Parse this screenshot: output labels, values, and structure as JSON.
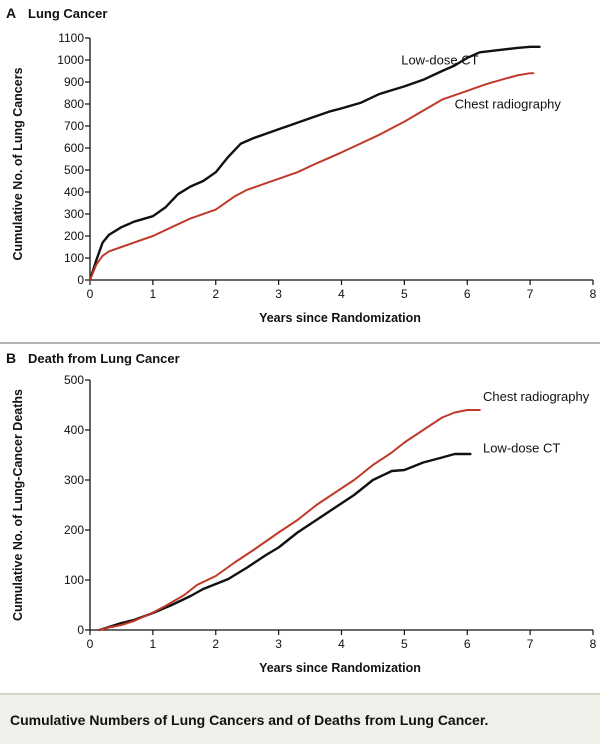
{
  "caption": "Cumulative Numbers of Lung Cancers and of Deaths from Lung Cancer.",
  "colors": {
    "low_dose_ct": "#111111",
    "chest_radiography": "#c0392b"
  },
  "chart_data": [
    {
      "type": "line",
      "panel": "A",
      "title": "Lung Cancer",
      "xlabel": "Years since Randomization",
      "ylabel": "Cumulative No. of Lung Cancers",
      "xlim": [
        0,
        8
      ],
      "ylim": [
        0,
        1100
      ],
      "xticks": [
        "0",
        "1",
        "2",
        "3",
        "4",
        "5",
        "6",
        "7",
        "8"
      ],
      "yticks": [
        "0",
        "100",
        "200",
        "300",
        "400",
        "500",
        "600",
        "700",
        "800",
        "900",
        "1000",
        "1100"
      ],
      "grid": false,
      "series": [
        {
          "name": "Low-dose CT",
          "color": "#111111",
          "x": [
            0,
            0.1,
            0.2,
            0.3,
            0.5,
            0.7,
            1.0,
            1.2,
            1.4,
            1.6,
            1.8,
            2.0,
            2.2,
            2.4,
            2.6,
            2.8,
            3.0,
            3.2,
            3.5,
            3.8,
            4.0,
            4.3,
            4.6,
            5.0,
            5.3,
            5.6,
            5.8,
            6.0,
            6.2,
            6.5,
            6.8,
            7.0,
            7.15
          ],
          "y": [
            0,
            90,
            170,
            205,
            240,
            265,
            290,
            330,
            390,
            425,
            450,
            490,
            560,
            620,
            645,
            665,
            685,
            705,
            735,
            765,
            780,
            805,
            845,
            880,
            910,
            950,
            975,
            1010,
            1035,
            1045,
            1055,
            1060,
            1060
          ]
        },
        {
          "name": "Chest radiography",
          "color": "#c0392b",
          "x": [
            0,
            0.1,
            0.2,
            0.3,
            0.5,
            0.7,
            1.0,
            1.3,
            1.6,
            2.0,
            2.3,
            2.5,
            2.8,
            3.0,
            3.3,
            3.6,
            4.0,
            4.3,
            4.6,
            5.0,
            5.3,
            5.6,
            6.0,
            6.3,
            6.6,
            6.8,
            7.0,
            7.05
          ],
          "y": [
            0,
            70,
            110,
            130,
            150,
            170,
            200,
            240,
            280,
            320,
            380,
            410,
            440,
            460,
            490,
            530,
            580,
            620,
            660,
            720,
            770,
            820,
            860,
            890,
            915,
            930,
            940,
            940
          ]
        }
      ],
      "annotations": [
        {
          "text": "Low-dose CT",
          "x": 4.95,
          "y": 980
        },
        {
          "text": "Chest radiography",
          "x": 5.8,
          "y": 780
        }
      ]
    },
    {
      "type": "line",
      "panel": "B",
      "title": "Death from Lung Cancer",
      "xlabel": "Years since Randomization",
      "ylabel": "Cumulative No. of Lung-Cancer Deaths",
      "xlim": [
        0,
        8
      ],
      "ylim": [
        0,
        500
      ],
      "xticks": [
        "0",
        "1",
        "2",
        "3",
        "4",
        "5",
        "6",
        "7",
        "8"
      ],
      "yticks": [
        "0",
        "100",
        "200",
        "300",
        "400",
        "500"
      ],
      "grid": false,
      "series": [
        {
          "name": "Low-dose CT",
          "color": "#111111",
          "x": [
            0.15,
            0.3,
            0.5,
            0.7,
            1.0,
            1.3,
            1.6,
            1.8,
            2.0,
            2.2,
            2.5,
            2.8,
            3.0,
            3.3,
            3.6,
            3.9,
            4.2,
            4.5,
            4.8,
            5.0,
            5.3,
            5.6,
            5.8,
            6.0,
            6.05
          ],
          "y": [
            0,
            6,
            14,
            20,
            34,
            50,
            68,
            82,
            92,
            102,
            125,
            150,
            165,
            195,
            220,
            245,
            270,
            300,
            318,
            320,
            335,
            345,
            352,
            352,
            352
          ]
        },
        {
          "name": "Chest radiography",
          "color": "#c0392b",
          "x": [
            0.15,
            0.3,
            0.5,
            0.7,
            1.0,
            1.2,
            1.5,
            1.7,
            2.0,
            2.3,
            2.6,
            3.0,
            3.3,
            3.6,
            3.9,
            4.2,
            4.5,
            4.8,
            5.0,
            5.3,
            5.6,
            5.8,
            6.0,
            6.2
          ],
          "y": [
            0,
            5,
            10,
            18,
            35,
            48,
            70,
            90,
            108,
            135,
            160,
            195,
            220,
            250,
            275,
            300,
            330,
            355,
            375,
            400,
            425,
            435,
            440,
            440
          ]
        }
      ],
      "annotations": [
        {
          "text": "Chest radiography",
          "x": 6.25,
          "y": 458
        },
        {
          "text": "Low-dose CT",
          "x": 6.25,
          "y": 355
        }
      ]
    }
  ]
}
